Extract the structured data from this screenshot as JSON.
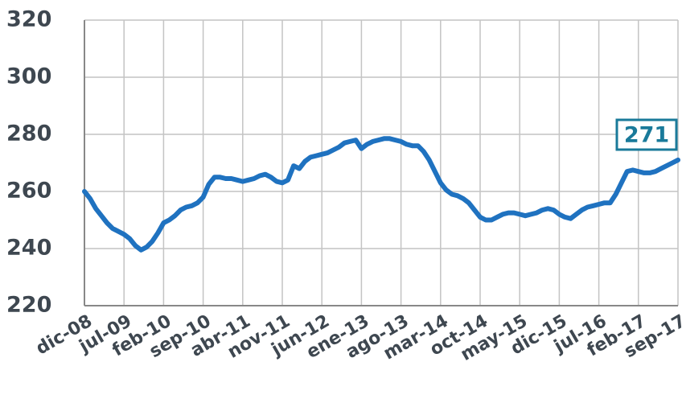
{
  "chart_data": {
    "type": "line",
    "color": "#1f72c0",
    "categories": [
      "dic-08",
      null,
      null,
      null,
      null,
      null,
      null,
      "jul-09",
      null,
      null,
      null,
      null,
      null,
      null,
      "feb-10",
      null,
      null,
      null,
      null,
      null,
      null,
      "sep-10",
      null,
      null,
      null,
      null,
      null,
      null,
      "abr-11",
      null,
      null,
      null,
      null,
      null,
      null,
      "nov-11",
      null,
      null,
      null,
      null,
      null,
      null,
      "jun-12",
      null,
      null,
      null,
      null,
      null,
      null,
      "ene-13",
      null,
      null,
      null,
      null,
      null,
      null,
      "ago-13",
      null,
      null,
      null,
      null,
      null,
      null,
      "mar-14",
      null,
      null,
      null,
      null,
      null,
      null,
      "oct-14",
      null,
      null,
      null,
      null,
      null,
      null,
      "may-15",
      null,
      null,
      null,
      null,
      null,
      null,
      "dic-15",
      null,
      null,
      null,
      null,
      null,
      null,
      "jul-16",
      null,
      null,
      null,
      null,
      null,
      null,
      "feb-17",
      null,
      null,
      null,
      null,
      null,
      null,
      "sep-17"
    ],
    "values": [
      260,
      257.5,
      254,
      251.5,
      249,
      247,
      246,
      245,
      243.5,
      241,
      239.5,
      240.5,
      242.5,
      245.5,
      249,
      250,
      251.5,
      253.5,
      254.5,
      255,
      256,
      258,
      262.5,
      265,
      265,
      264.5,
      264.5,
      264,
      263.5,
      264,
      264.5,
      265.5,
      266,
      265,
      263.5,
      263,
      264,
      269,
      268,
      270.5,
      272,
      272.5,
      273,
      273.5,
      274.5,
      275.5,
      277,
      277.5,
      278,
      275,
      276.5,
      277.5,
      278,
      278.5,
      278.5,
      278,
      277.5,
      276.5,
      276,
      276,
      274,
      271,
      267,
      263,
      260.5,
      259,
      258.5,
      257.5,
      256,
      253.5,
      251,
      250,
      250,
      251,
      252,
      252.5,
      252.5,
      252,
      251.5,
      252,
      252.5,
      253.5,
      254,
      253.5,
      252,
      251,
      250.5,
      252,
      253.5,
      254.5,
      255,
      255.5,
      256,
      256,
      259,
      263,
      267,
      267.5,
      267,
      266.5,
      266.5,
      267,
      268,
      269,
      270,
      271
    ],
    "ylim": [
      220,
      320
    ],
    "yticks": [
      220,
      240,
      260,
      280,
      300,
      320
    ],
    "grid": true
  }
}
